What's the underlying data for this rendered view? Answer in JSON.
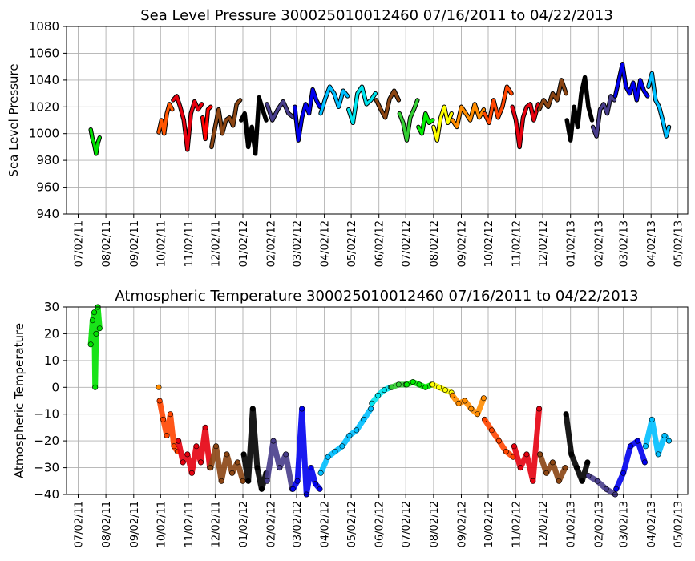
{
  "chart_data": [
    {
      "type": "line",
      "title": "Sea Level Pressure 300025010012460  07/16/2011 to 04/22/2013",
      "ylabel": "Sea Level Pressure",
      "xlabel": "",
      "ylim": [
        940,
        1080
      ],
      "yticks": [
        "940",
        "960",
        "980",
        "1000",
        "1020",
        "1040",
        "1060",
        "1080"
      ],
      "xticks": [
        "07/02/11",
        "08/02/11",
        "09/02/11",
        "10/02/11",
        "11/02/11",
        "12/02/11",
        "01/02/12",
        "02/02/12",
        "03/02/12",
        "04/02/12",
        "05/02/12",
        "06/02/12",
        "07/02/12",
        "08/02/12",
        "09/02/12",
        "10/02/12",
        "11/02/12",
        "12/02/12",
        "01/02/13",
        "02/02/13",
        "03/02/13",
        "04/02/13",
        "05/02/13"
      ],
      "grid": true,
      "series": [
        {
          "color": "#00e000",
          "x": [
            "2011-07-16",
            "2011-07-18",
            "2011-07-20",
            "2011-07-22",
            "2011-07-24",
            "2011-07-26"
          ],
          "y": [
            1003,
            996,
            992,
            985,
            993,
            997
          ]
        },
        {
          "color": "#ff5500",
          "x": [
            "2011-09-30",
            "2011-10-03",
            "2011-10-06",
            "2011-10-09",
            "2011-10-12",
            "2011-10-15"
          ],
          "y": [
            1001,
            1010,
            1000,
            1015,
            1022,
            1018
          ]
        },
        {
          "color": "#e6000f",
          "x": [
            "2011-10-16",
            "2011-10-20",
            "2011-10-24",
            "2011-10-28",
            "2011-11-01",
            "2011-11-05",
            "2011-11-09",
            "2011-11-13",
            "2011-11-17"
          ],
          "y": [
            1025,
            1028,
            1020,
            1010,
            988,
            1015,
            1024,
            1018,
            1022
          ]
        },
        {
          "color": "#ff0000",
          "x": [
            "2011-11-18",
            "2011-11-21",
            "2011-11-24",
            "2011-11-27"
          ],
          "y": [
            1012,
            996,
            1018,
            1020
          ]
        },
        {
          "color": "#8b4513",
          "x": [
            "2011-11-28",
            "2011-12-02",
            "2011-12-06",
            "2011-12-10",
            "2011-12-14",
            "2011-12-18",
            "2011-12-22",
            "2011-12-26",
            "2011-12-30"
          ],
          "y": [
            990,
            1005,
            1018,
            1000,
            1010,
            1012,
            1006,
            1022,
            1025
          ]
        },
        {
          "color": "#000000",
          "x": [
            "2011-12-31",
            "2012-01-04",
            "2012-01-08",
            "2012-01-12",
            "2012-01-16",
            "2012-01-20",
            "2012-01-24",
            "2012-01-28"
          ],
          "y": [
            1010,
            1015,
            990,
            1005,
            985,
            1027,
            1018,
            1010
          ]
        },
        {
          "color": "#483d8b",
          "x": [
            "2012-01-29",
            "2012-02-04",
            "2012-02-10",
            "2012-02-16",
            "2012-02-22",
            "2012-02-28"
          ],
          "y": [
            1022,
            1010,
            1018,
            1024,
            1015,
            1012
          ]
        },
        {
          "color": "#0000ee",
          "x": [
            "2012-02-29",
            "2012-03-04",
            "2012-03-08",
            "2012-03-12",
            "2012-03-16",
            "2012-03-20",
            "2012-03-24",
            "2012-03-28"
          ],
          "y": [
            1020,
            995,
            1012,
            1022,
            1015,
            1033,
            1025,
            1020
          ]
        },
        {
          "color": "#00bfff",
          "x": [
            "2012-03-29",
            "2012-04-03",
            "2012-04-08",
            "2012-04-13",
            "2012-04-18",
            "2012-04-23",
            "2012-04-28"
          ],
          "y": [
            1015,
            1026,
            1035,
            1030,
            1020,
            1032,
            1028
          ]
        },
        {
          "color": "#00e5ee",
          "x": [
            "2012-04-29",
            "2012-05-04",
            "2012-05-09",
            "2012-05-14",
            "2012-05-19",
            "2012-05-24",
            "2012-05-29"
          ],
          "y": [
            1018,
            1008,
            1030,
            1035,
            1022,
            1025,
            1030
          ]
        },
        {
          "color": "#8b4513",
          "x": [
            "2012-05-30",
            "2012-06-04",
            "2012-06-09",
            "2012-06-14",
            "2012-06-19",
            "2012-06-24"
          ],
          "y": [
            1025,
            1018,
            1012,
            1026,
            1032,
            1025
          ]
        },
        {
          "color": "#32cd32",
          "x": [
            "2012-06-25",
            "2012-06-29",
            "2012-07-03",
            "2012-07-07",
            "2012-07-11",
            "2012-07-15"
          ],
          "y": [
            1015,
            1008,
            995,
            1012,
            1018,
            1025
          ]
        },
        {
          "color": "#00ee00",
          "x": [
            "2012-07-16",
            "2012-07-20",
            "2012-07-24",
            "2012-07-28",
            "2012-08-01"
          ],
          "y": [
            1005,
            1000,
            1015,
            1008,
            1010
          ]
        },
        {
          "color": "#ffff00",
          "x": [
            "2012-08-02",
            "2012-08-06",
            "2012-08-10",
            "2012-08-14",
            "2012-08-18",
            "2012-08-22"
          ],
          "y": [
            1005,
            995,
            1012,
            1020,
            1008,
            1015
          ]
        },
        {
          "color": "#ff8c00",
          "x": [
            "2012-08-23",
            "2012-08-28",
            "2012-09-02",
            "2012-09-07",
            "2012-09-12",
            "2012-09-17",
            "2012-09-22",
            "2012-09-27"
          ],
          "y": [
            1010,
            1005,
            1020,
            1015,
            1010,
            1022,
            1012,
            1018
          ]
        },
        {
          "color": "#ff4500",
          "x": [
            "2012-09-28",
            "2012-10-03",
            "2012-10-08",
            "2012-10-13",
            "2012-10-18",
            "2012-10-23",
            "2012-10-28"
          ],
          "y": [
            1015,
            1008,
            1025,
            1012,
            1020,
            1035,
            1030
          ]
        },
        {
          "color": "#e6000f",
          "x": [
            "2012-10-29",
            "2012-11-02",
            "2012-11-06",
            "2012-11-10",
            "2012-11-14",
            "2012-11-18",
            "2012-11-22",
            "2012-11-27"
          ],
          "y": [
            1020,
            1010,
            990,
            1012,
            1020,
            1022,
            1010,
            1022
          ]
        },
        {
          "color": "#8b4513",
          "x": [
            "2012-11-28",
            "2012-12-03",
            "2012-12-08",
            "2012-12-13",
            "2012-12-18",
            "2012-12-23",
            "2012-12-28"
          ],
          "y": [
            1018,
            1025,
            1020,
            1030,
            1025,
            1040,
            1030
          ]
        },
        {
          "color": "#000000",
          "x": [
            "2012-12-29",
            "2013-01-02",
            "2013-01-06",
            "2013-01-10",
            "2013-01-14",
            "2013-01-18",
            "2013-01-22",
            "2013-01-26"
          ],
          "y": [
            1010,
            995,
            1020,
            1005,
            1030,
            1042,
            1020,
            1010
          ]
        },
        {
          "color": "#483d8b",
          "x": [
            "2013-01-27",
            "2013-01-31",
            "2013-02-04",
            "2013-02-08",
            "2013-02-12",
            "2013-02-16",
            "2013-02-20"
          ],
          "y": [
            1005,
            998,
            1018,
            1022,
            1015,
            1028,
            1025
          ]
        },
        {
          "color": "#0000ee",
          "x": [
            "2013-02-21",
            "2013-02-25",
            "2013-03-01",
            "2013-03-05",
            "2013-03-09",
            "2013-03-13",
            "2013-03-17",
            "2013-03-21",
            "2013-03-25",
            "2013-03-29"
          ],
          "y": [
            1028,
            1040,
            1052,
            1035,
            1030,
            1038,
            1025,
            1040,
            1032,
            1028
          ]
        },
        {
          "color": "#00bfff",
          "x": [
            "2013-03-30",
            "2013-04-03",
            "2013-04-07",
            "2013-04-11",
            "2013-04-15",
            "2013-04-19",
            "2013-04-22"
          ],
          "y": [
            1035,
            1045,
            1025,
            1020,
            1010,
            998,
            1005
          ]
        }
      ]
    },
    {
      "type": "scatter",
      "title": "Atmospheric Temperature 300025010012460  07/16/2011 to 04/22/2013",
      "ylabel": "Atmospheric Temperature",
      "xlabel": "",
      "ylim": [
        -40,
        30
      ],
      "yticks": [
        "−40",
        "−30",
        "−20",
        "−10",
        "0",
        "10",
        "20",
        "30"
      ],
      "xticks": [
        "07/02/11",
        "08/02/11",
        "09/02/11",
        "10/02/11",
        "11/02/11",
        "12/02/11",
        "01/02/12",
        "02/02/12",
        "03/02/12",
        "04/02/12",
        "05/02/12",
        "06/02/12",
        "07/02/12",
        "08/02/12",
        "09/02/12",
        "10/02/12",
        "11/02/12",
        "12/02/12",
        "01/02/13",
        "02/02/13",
        "03/02/13",
        "04/02/13",
        "05/02/13"
      ],
      "grid": true,
      "series": [
        {
          "color": "#00e000",
          "x": [
            "2011-07-16",
            "2011-07-18",
            "2011-07-20",
            "2011-07-21",
            "2011-07-22",
            "2011-07-24",
            "2011-07-26"
          ],
          "y": [
            16,
            25,
            28,
            0,
            20,
            30,
            22
          ]
        },
        {
          "color": "#ff8c00",
          "x": [
            "2011-09-30"
          ],
          "y": [
            0
          ]
        },
        {
          "color": "#ff4500",
          "x": [
            "2011-10-01",
            "2011-10-05",
            "2011-10-09",
            "2011-10-13",
            "2011-10-17",
            "2011-10-21"
          ],
          "y": [
            -5,
            -12,
            -18,
            -10,
            -22,
            -24
          ]
        },
        {
          "color": "#e6000f",
          "x": [
            "2011-10-22",
            "2011-10-27",
            "2011-11-01",
            "2011-11-06",
            "2011-11-11",
            "2011-11-16",
            "2011-11-21",
            "2011-11-26"
          ],
          "y": [
            -20,
            -28,
            -25,
            -32,
            -22,
            -28,
            -15,
            -30
          ]
        },
        {
          "color": "#8b4513",
          "x": [
            "2011-11-27",
            "2011-12-03",
            "2011-12-09",
            "2011-12-15",
            "2011-12-21",
            "2011-12-27",
            "2012-01-02"
          ],
          "y": [
            -30,
            -22,
            -35,
            -25,
            -32,
            -28,
            -35
          ]
        },
        {
          "color": "#000000",
          "x": [
            "2012-01-03",
            "2012-01-08",
            "2012-01-13",
            "2012-01-18",
            "2012-01-23",
            "2012-01-28"
          ],
          "y": [
            -25,
            -35,
            -8,
            -30,
            -38,
            -32
          ]
        },
        {
          "color": "#483d8b",
          "x": [
            "2012-01-29",
            "2012-02-05",
            "2012-02-12",
            "2012-02-19",
            "2012-02-26"
          ],
          "y": [
            -35,
            -20,
            -30,
            -25,
            -38
          ]
        },
        {
          "color": "#0000ee",
          "x": [
            "2012-02-27",
            "2012-03-03",
            "2012-03-08",
            "2012-03-13",
            "2012-03-18",
            "2012-03-23",
            "2012-03-28"
          ],
          "y": [
            -38,
            -35,
            -8,
            -40,
            -30,
            -36,
            -38
          ]
        },
        {
          "color": "#00bfff",
          "x": [
            "2012-03-29",
            "2012-04-06",
            "2012-04-14",
            "2012-04-22",
            "2012-04-30",
            "2012-05-08",
            "2012-05-16",
            "2012-05-24"
          ],
          "y": [
            -32,
            -26,
            -24,
            -22,
            -18,
            -16,
            -12,
            -8
          ]
        },
        {
          "color": "#00e5ee",
          "x": [
            "2012-05-25",
            "2012-06-01",
            "2012-06-08",
            "2012-06-15"
          ],
          "y": [
            -6,
            -3,
            -1,
            0
          ]
        },
        {
          "color": "#32cd32",
          "x": [
            "2012-06-16",
            "2012-06-24",
            "2012-07-02"
          ],
          "y": [
            0,
            1,
            1
          ]
        },
        {
          "color": "#00ee00",
          "x": [
            "2012-07-03",
            "2012-07-10",
            "2012-07-17",
            "2012-07-24",
            "2012-07-31"
          ],
          "y": [
            1,
            2,
            1,
            0,
            1
          ]
        },
        {
          "color": "#ffff00",
          "x": [
            "2012-08-01",
            "2012-08-08",
            "2012-08-15",
            "2012-08-22"
          ],
          "y": [
            1,
            0,
            -1,
            -2
          ]
        },
        {
          "color": "#ff8c00",
          "x": [
            "2012-08-23",
            "2012-08-30",
            "2012-09-06",
            "2012-09-13",
            "2012-09-20",
            "2012-09-27"
          ],
          "y": [
            -3,
            -6,
            -5,
            -8,
            -10,
            -4
          ]
        },
        {
          "color": "#ff4500",
          "x": [
            "2012-09-28",
            "2012-10-06",
            "2012-10-14",
            "2012-10-22",
            "2012-10-30"
          ],
          "y": [
            -12,
            -16,
            -20,
            -24,
            -26
          ]
        },
        {
          "color": "#e6000f",
          "x": [
            "2012-10-31",
            "2012-11-07",
            "2012-11-14",
            "2012-11-21",
            "2012-11-28"
          ],
          "y": [
            -22,
            -30,
            -25,
            -35,
            -8
          ]
        },
        {
          "color": "#8b4513",
          "x": [
            "2012-11-29",
            "2012-12-06",
            "2012-12-13",
            "2012-12-20",
            "2012-12-27"
          ],
          "y": [
            -25,
            -32,
            -28,
            -35,
            -30
          ]
        },
        {
          "color": "#000000",
          "x": [
            "2012-12-28",
            "2013-01-03",
            "2013-01-09",
            "2013-01-15",
            "2013-01-21"
          ],
          "y": [
            -10,
            -25,
            -30,
            -35,
            -28
          ]
        },
        {
          "color": "#483d8b",
          "x": [
            "2013-01-22",
            "2013-02-01",
            "2013-02-11",
            "2013-02-21"
          ],
          "y": [
            -33,
            -35,
            -38,
            -40
          ]
        },
        {
          "color": "#0000ee",
          "x": [
            "2013-02-22",
            "2013-03-02",
            "2013-03-10",
            "2013-03-18",
            "2013-03-26"
          ],
          "y": [
            -38,
            -32,
            -22,
            -20,
            -28
          ]
        },
        {
          "color": "#00bfff",
          "x": [
            "2013-03-27",
            "2013-04-03",
            "2013-04-10",
            "2013-04-17",
            "2013-04-22"
          ],
          "y": [
            -22,
            -12,
            -25,
            -18,
            -20
          ]
        }
      ]
    }
  ]
}
